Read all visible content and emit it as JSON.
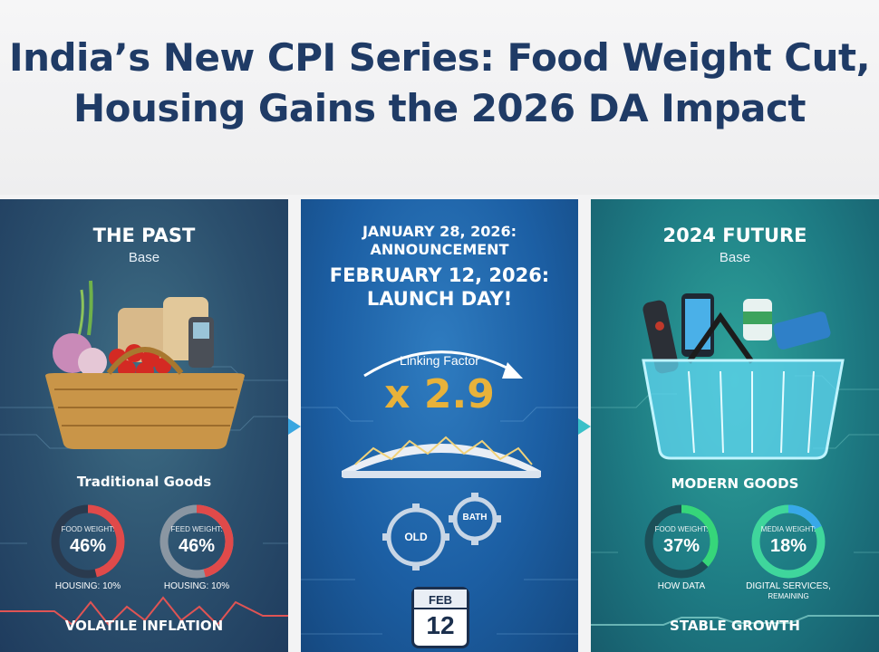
{
  "header": {
    "title_line1": "India’s New CPI Series: Food Weight Cut,",
    "title_line2": "Housing Gains the 2026 DA Impact"
  },
  "colors": {
    "title": "#1f3b66",
    "past_panel": "#2b4f6d",
    "middle_panel": "#1c5fa4",
    "future_panel": "#1e7c84",
    "ring_red": "#e04a4a",
    "ring_green": "#36d67a",
    "ring_blue": "#38a8e8",
    "linking_factor": "#e8b23a"
  },
  "past": {
    "title": "THE PAST",
    "subtitle": "Base",
    "caption": "Traditional Goods",
    "ring1": {
      "label": "FOOD WEIGHT:",
      "value": "46%",
      "fraction": 0.46
    },
    "ring2": {
      "label": "FEED WEIGHT:",
      "value": "46%",
      "fraction": 0.46
    },
    "housing1": "HOUSING: 10%",
    "housing2": "HOUSING: 10%",
    "bottom": "VOLATILE INFLATION",
    "basket_icon": "wicker-basket-icon"
  },
  "middle": {
    "line1": "JANUARY 28, 2026:",
    "line2": "ANNOUNCEMENT",
    "line3": "FEBRUARY 12, 2026:",
    "line4": "LAUNCH DAY!",
    "linking_label": "Linking Factor",
    "linking_value": "x 2.9",
    "gear_old": "OLD",
    "gear_new": "BATH",
    "cal_month": "FEB",
    "cal_day": "12"
  },
  "future": {
    "title": "2024 FUTURE",
    "subtitle": "Base",
    "caption": "MODERN GOODS",
    "ring1": {
      "label": "FOOD WEIGHT:",
      "value": "37%",
      "fraction": 0.37
    },
    "ring2": {
      "label": "MEDIA WEIGHT:",
      "value": "18%",
      "fraction": 0.18
    },
    "label1": "HOW DATA",
    "label2_line1": "DIGITAL SERVICES,",
    "label2_line2": "REMAINING",
    "bottom": "STABLE GROWTH",
    "basket_icon": "shopping-basket-icon"
  }
}
